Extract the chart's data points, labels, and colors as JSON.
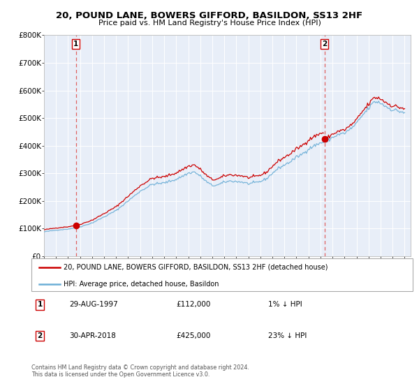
{
  "title": "20, POUND LANE, BOWERS GIFFORD, BASILDON, SS13 2HF",
  "subtitle": "Price paid vs. HM Land Registry's House Price Index (HPI)",
  "legend_label_red": "20, POUND LANE, BOWERS GIFFORD, BASILDON, SS13 2HF (detached house)",
  "legend_label_blue": "HPI: Average price, detached house, Basildon",
  "transaction1": {
    "label": "1",
    "date": "29-AUG-1997",
    "price": 112000,
    "hpi_rel": "1% ↓ HPI",
    "year": 1997.667
  },
  "transaction2": {
    "label": "2",
    "date": "30-APR-2018",
    "price": 425000,
    "hpi_rel": "23% ↓ HPI",
    "year": 2018.333
  },
  "footer": "Contains HM Land Registry data © Crown copyright and database right 2024.\nThis data is licensed under the Open Government Licence v3.0.",
  "ylim": [
    0,
    800000
  ],
  "yticks": [
    0,
    100000,
    200000,
    300000,
    400000,
    500000,
    600000,
    700000,
    800000
  ],
  "ytick_labels": [
    "£0",
    "£100K",
    "£200K",
    "£300K",
    "£400K",
    "£500K",
    "£600K",
    "£700K",
    "£800K"
  ],
  "hpi_color": "#6baed6",
  "price_color": "#cc0000",
  "vline_color": "#e06060",
  "plot_bg_color": "#e8eef8",
  "grid_color": "#ffffff"
}
